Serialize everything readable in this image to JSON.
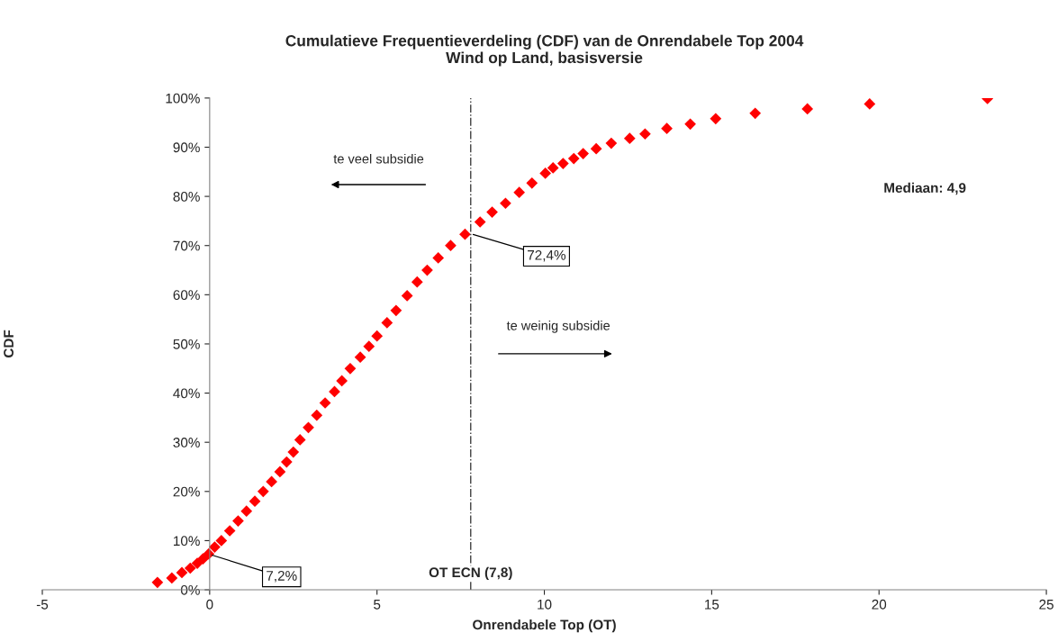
{
  "chart_data": {
    "type": "scatter",
    "title": "Cumulatieve Frequentieverdeling (CDF) van de Onrendabele Top 2004\nWind op Land, basisversie",
    "xlabel": "Onrendabele Top (OT)",
    "ylabel": "CDF",
    "series": [
      {
        "color": "#ff0000",
        "x": [
          -1.56,
          -1.13,
          -0.83,
          -0.58,
          -0.37,
          -0.2,
          -0.03,
          0.15,
          0.35,
          0.6,
          0.85,
          1.1,
          1.35,
          1.6,
          1.85,
          2.1,
          2.3,
          2.5,
          2.7,
          2.95,
          3.2,
          3.45,
          3.73,
          3.95,
          4.2,
          4.5,
          4.76,
          5.0,
          5.3,
          5.57,
          5.9,
          6.2,
          6.5,
          6.83,
          7.2,
          7.63,
          8.08,
          8.44,
          8.84,
          9.25,
          9.63,
          10.03,
          10.26,
          10.56,
          10.88,
          11.16,
          11.55,
          12.0,
          12.55,
          13.01,
          13.66,
          14.36,
          15.12,
          16.3,
          17.86,
          19.72,
          23.24
        ],
        "values": [
          1.5,
          2.4,
          3.5,
          4.4,
          5.4,
          6.3,
          7.3,
          8.7,
          10,
          12,
          14,
          16,
          18,
          20,
          22,
          24,
          26,
          28,
          30.5,
          33,
          35.5,
          38,
          40.3,
          42.5,
          45,
          47.3,
          49.5,
          51.6,
          54.3,
          56.8,
          59.8,
          62.6,
          65,
          67.5,
          70,
          72.3,
          74.8,
          76.8,
          78.6,
          80.8,
          82.7,
          84.7,
          85.8,
          86.7,
          87.7,
          88.7,
          89.7,
          90.8,
          91.8,
          92.7,
          93.8,
          94.7,
          95.8,
          96.9,
          97.8,
          98.8,
          99.9
        ]
      }
    ],
    "marker": "diamond",
    "xlim": [
      -5,
      25
    ],
    "xticks": [
      -5,
      0,
      5,
      10,
      15,
      20,
      25
    ],
    "ylim": [
      0,
      100
    ],
    "yticks": [
      {
        "value": 0,
        "label": "0%"
      },
      {
        "value": 10,
        "label": "10%"
      },
      {
        "value": 20,
        "label": "20%"
      },
      {
        "value": 30,
        "label": "30%"
      },
      {
        "value": 40,
        "label": "40%"
      },
      {
        "value": 50,
        "label": "50%"
      },
      {
        "value": 60,
        "label": "60%"
      },
      {
        "value": 70,
        "label": "70%"
      },
      {
        "value": 80,
        "label": "80%"
      },
      {
        "value": 90,
        "label": "90%"
      },
      {
        "value": 100,
        "label": "100%"
      }
    ],
    "ref_lines": [
      {
        "axis": "x",
        "value": 7.8,
        "label": "OT ECN (7,8)",
        "line_style": "dashdot",
        "color": "#404040"
      }
    ],
    "annotations": [
      {
        "text": "7,2%",
        "x": 0,
        "y": 7.2
      },
      {
        "text": "72,4%",
        "x": 7.8,
        "y": 72.4
      },
      "te veel subsidie",
      "te weinig subsidie",
      "Mediaan: 4,9"
    ],
    "grid": false,
    "legend": false
  }
}
